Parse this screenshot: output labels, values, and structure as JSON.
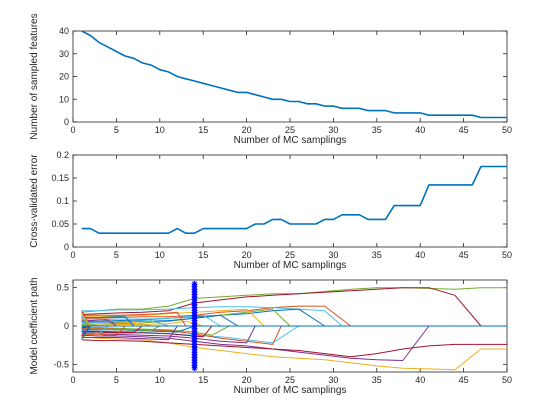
{
  "chart_data": [
    {
      "type": "line",
      "xlabel": "Number of MC samplings",
      "ylabel": "Number of sampled features",
      "xlim": [
        0,
        50
      ],
      "ylim": [
        0,
        40
      ],
      "xticks": [
        "0",
        "5",
        "10",
        "15",
        "20",
        "25",
        "30",
        "35",
        "40",
        "45",
        "50"
      ],
      "yticks": [
        "0",
        "10",
        "20",
        "30",
        "40"
      ],
      "grid": false,
      "series": [
        {
          "color": "#0072BD",
          "x": [
            1,
            2,
            3,
            4,
            5,
            6,
            7,
            8,
            9,
            10,
            11,
            12,
            13,
            14,
            15,
            16,
            17,
            18,
            19,
            20,
            21,
            22,
            23,
            24,
            25,
            26,
            27,
            28,
            29,
            30,
            31,
            32,
            33,
            34,
            35,
            36,
            37,
            38,
            39,
            40,
            41,
            42,
            43,
            44,
            45,
            46,
            47,
            48,
            49,
            50
          ],
          "y": [
            40,
            38,
            35,
            33,
            31,
            29,
            28,
            26,
            25,
            23,
            22,
            20,
            19,
            18,
            17,
            16,
            15,
            14,
            13,
            13,
            12,
            11,
            10,
            10,
            9,
            9,
            8,
            8,
            7,
            7,
            6,
            6,
            6,
            5,
            5,
            5,
            4,
            4,
            4,
            4,
            3,
            3,
            3,
            3,
            3,
            3,
            2,
            2,
            2,
            2
          ]
        }
      ]
    },
    {
      "type": "line",
      "xlabel": "Number of MC samplings",
      "ylabel": "Cross-validated error",
      "xlim": [
        0,
        50
      ],
      "ylim": [
        0,
        0.2
      ],
      "xticks": [
        "0",
        "5",
        "10",
        "15",
        "20",
        "25",
        "30",
        "35",
        "40",
        "45",
        "50"
      ],
      "yticks": [
        "0",
        "0.05",
        "0.1",
        "0.15",
        "0.2"
      ],
      "grid": false,
      "series": [
        {
          "color": "#0072BD",
          "x": [
            1,
            2,
            3,
            4,
            5,
            6,
            7,
            8,
            9,
            10,
            11,
            12,
            13,
            14,
            15,
            16,
            17,
            18,
            19,
            20,
            21,
            22,
            23,
            24,
            25,
            26,
            27,
            28,
            29,
            30,
            31,
            32,
            33,
            34,
            35,
            36,
            37,
            38,
            39,
            40,
            41,
            42,
            43,
            44,
            45,
            46,
            47,
            48,
            49,
            50
          ],
          "y": [
            0.04,
            0.04,
            0.03,
            0.03,
            0.03,
            0.03,
            0.03,
            0.03,
            0.03,
            0.03,
            0.03,
            0.04,
            0.03,
            0.03,
            0.04,
            0.04,
            0.04,
            0.04,
            0.04,
            0.04,
            0.05,
            0.05,
            0.06,
            0.06,
            0.05,
            0.05,
            0.05,
            0.05,
            0.06,
            0.06,
            0.07,
            0.07,
            0.07,
            0.06,
            0.06,
            0.06,
            0.09,
            0.09,
            0.09,
            0.09,
            0.135,
            0.135,
            0.135,
            0.135,
            0.135,
            0.135,
            0.175,
            0.175,
            0.175,
            0.175
          ]
        }
      ]
    },
    {
      "type": "line",
      "xlabel": "Number of MC samplings",
      "ylabel": "Model coefficient path",
      "xlim": [
        0,
        50
      ],
      "ylim": [
        -0.6,
        0.6
      ],
      "xticks": [
        "0",
        "5",
        "10",
        "15",
        "20",
        "25",
        "30",
        "35",
        "40",
        "45",
        "50"
      ],
      "yticks": [
        "-0.5",
        "0",
        "0.5"
      ],
      "grid": false,
      "annotations": [
        {
          "type": "vertical-marker-line",
          "x": 14,
          "color": "#0000ff",
          "marker": "asterisk"
        }
      ],
      "series": [
        {
          "color": "#77AC30",
          "x": [
            1,
            3,
            5,
            8,
            11,
            14,
            17,
            20,
            23,
            26,
            29,
            32,
            35,
            38,
            41,
            44,
            47,
            50
          ],
          "y": [
            0.18,
            0.2,
            0.22,
            0.22,
            0.26,
            0.36,
            0.38,
            0.4,
            0.42,
            0.42,
            0.45,
            0.48,
            0.5,
            0.5,
            0.49,
            0.48,
            0.5,
            0.5
          ]
        },
        {
          "color": "#A2142F",
          "x": [
            1,
            3,
            5,
            8,
            11,
            14,
            17,
            20,
            23,
            26,
            29,
            32,
            35,
            38,
            41,
            44,
            47
          ],
          "y": [
            0.15,
            0.16,
            0.17,
            0.18,
            0.2,
            0.3,
            0.34,
            0.38,
            0.4,
            0.42,
            0.44,
            0.46,
            0.48,
            0.5,
            0.5,
            0.4,
            0
          ]
        },
        {
          "color": "#EDB120",
          "x": [
            1,
            3,
            5,
            8,
            11,
            14,
            17,
            20,
            23,
            26,
            29,
            32,
            35,
            38,
            41,
            44,
            47,
            50
          ],
          "y": [
            -0.14,
            -0.16,
            -0.17,
            -0.18,
            -0.22,
            -0.28,
            -0.32,
            -0.36,
            -0.4,
            -0.42,
            -0.44,
            -0.48,
            -0.52,
            -0.55,
            -0.56,
            -0.57,
            -0.3,
            -0.3
          ]
        },
        {
          "color": "#7E2F8E",
          "x": [
            1,
            3,
            5,
            8,
            11,
            14,
            17,
            20,
            23,
            26,
            29,
            32,
            35,
            38,
            41
          ],
          "y": [
            -0.12,
            -0.13,
            -0.13,
            -0.14,
            -0.16,
            -0.2,
            -0.24,
            -0.26,
            -0.3,
            -0.34,
            -0.38,
            -0.42,
            -0.44,
            -0.45,
            0
          ]
        },
        {
          "color": "#A2142F",
          "x": [
            1,
            3,
            5,
            8,
            11,
            14,
            17,
            20,
            23,
            26,
            29,
            32,
            35,
            38,
            41,
            44,
            47,
            50
          ],
          "y": [
            -0.18,
            -0.19,
            -0.19,
            -0.2,
            -0.22,
            -0.24,
            -0.26,
            -0.28,
            -0.3,
            -0.32,
            -0.36,
            -0.4,
            -0.36,
            -0.3,
            -0.26,
            -0.24,
            -0.24,
            -0.24
          ]
        },
        {
          "color": "#D95319",
          "x": [
            1,
            3,
            5,
            8,
            11,
            14,
            17,
            20,
            23,
            26,
            29,
            32
          ],
          "y": [
            0.1,
            0.1,
            0.11,
            0.12,
            0.12,
            0.14,
            0.18,
            0.2,
            0.24,
            0.26,
            0.26,
            0
          ]
        },
        {
          "color": "#4DBEEE",
          "x": [
            1,
            3,
            5,
            8,
            11,
            14,
            17,
            20,
            23,
            26,
            29,
            31
          ],
          "y": [
            0.2,
            0.2,
            0.21,
            0.21,
            0.22,
            0.24,
            0.25,
            0.25,
            0.24,
            0.22,
            0.2,
            0
          ]
        },
        {
          "color": "#0072BD",
          "x": [
            1,
            3,
            5,
            8,
            11,
            14,
            17,
            20,
            23,
            26,
            29
          ],
          "y": [
            0.06,
            0.06,
            0.07,
            0.08,
            0.1,
            0.12,
            0.14,
            0.16,
            0.2,
            0.22,
            0
          ]
        },
        {
          "color": "#4DBEEE",
          "x": [
            1,
            3,
            5,
            8,
            11,
            14,
            17,
            20,
            23,
            26
          ],
          "y": [
            -0.06,
            -0.07,
            -0.07,
            -0.08,
            -0.1,
            -0.12,
            -0.14,
            -0.18,
            -0.22,
            0
          ]
        },
        {
          "color": "#77AC30",
          "x": [
            1,
            3,
            5,
            8,
            11,
            14,
            17,
            20,
            23,
            25
          ],
          "y": [
            0.02,
            0.03,
            0.03,
            0.04,
            0.06,
            0.1,
            0.14,
            0.18,
            0.22,
            0
          ]
        },
        {
          "color": "#D95319",
          "x": [
            1,
            3,
            5,
            8,
            11,
            14,
            17,
            20,
            23,
            24
          ],
          "y": [
            -0.03,
            -0.03,
            -0.04,
            -0.05,
            -0.06,
            -0.1,
            -0.16,
            -0.2,
            -0.24,
            0
          ]
        },
        {
          "color": "#EDB120",
          "x": [
            1,
            3,
            5,
            8,
            11,
            14,
            17,
            20,
            22
          ],
          "y": [
            0.12,
            0.12,
            0.13,
            0.14,
            0.16,
            0.18,
            0.2,
            0.22,
            0
          ]
        },
        {
          "color": "#7E2F8E",
          "x": [
            1,
            3,
            5,
            8,
            11,
            14,
            17,
            20,
            21
          ],
          "y": [
            -0.1,
            -0.1,
            -0.11,
            -0.12,
            -0.13,
            -0.16,
            -0.2,
            -0.22,
            0
          ]
        },
        {
          "color": "#0072BD",
          "x": [
            1,
            3,
            5,
            8,
            11,
            14,
            17,
            19
          ],
          "y": [
            0.04,
            0.05,
            0.05,
            0.06,
            0.07,
            0.1,
            0.14,
            0
          ]
        },
        {
          "color": "#77AC30",
          "x": [
            1,
            3,
            5,
            8,
            11,
            14,
            16,
            18
          ],
          "y": [
            -0.02,
            -0.02,
            -0.03,
            -0.04,
            -0.05,
            -0.08,
            -0.12,
            0
          ]
        },
        {
          "color": "#4DBEEE",
          "x": [
            1,
            3,
            5,
            8,
            11,
            13,
            15,
            17
          ],
          "y": [
            0.08,
            0.08,
            0.09,
            0.09,
            0.1,
            0.12,
            0.14,
            0
          ]
        },
        {
          "color": "#A2142F",
          "x": [
            1,
            3,
            5,
            8,
            11,
            13,
            15,
            16
          ],
          "y": [
            -0.08,
            -0.08,
            -0.09,
            -0.09,
            -0.1,
            -0.12,
            -0.14,
            0
          ]
        },
        {
          "color": "#EDB120",
          "x": [
            1,
            3,
            5,
            8,
            11,
            13,
            15
          ],
          "y": [
            0.01,
            0.01,
            0.02,
            0.02,
            0.03,
            0.06,
            0
          ]
        },
        {
          "color": "#0072BD",
          "x": [
            1,
            3,
            5,
            8,
            10,
            12,
            14
          ],
          "y": [
            -0.05,
            -0.05,
            -0.05,
            -0.06,
            -0.07,
            -0.08,
            0
          ]
        },
        {
          "color": "#D95319",
          "x": [
            1,
            3,
            5,
            8,
            10,
            12,
            13
          ],
          "y": [
            0.14,
            0.14,
            0.14,
            0.15,
            0.16,
            0.18,
            0
          ]
        },
        {
          "color": "#7E2F8E",
          "x": [
            1,
            3,
            5,
            7,
            9,
            11,
            12
          ],
          "y": [
            -0.15,
            -0.15,
            -0.15,
            -0.16,
            -0.17,
            -0.18,
            0
          ]
        },
        {
          "color": "#4DBEEE",
          "x": [
            1,
            3,
            5,
            7,
            9,
            11
          ],
          "y": [
            0.05,
            0.05,
            0.06,
            0.06,
            0.07,
            0
          ]
        },
        {
          "color": "#77AC30",
          "x": [
            1,
            3,
            5,
            7,
            9,
            10
          ],
          "y": [
            -0.04,
            -0.04,
            -0.05,
            -0.05,
            -0.06,
            0
          ]
        },
        {
          "color": "#EDB120",
          "x": [
            1,
            3,
            5,
            7,
            9
          ],
          "y": [
            0.03,
            0.03,
            0.04,
            0.05,
            0
          ]
        },
        {
          "color": "#A2142F",
          "x": [
            1,
            3,
            5,
            7,
            8
          ],
          "y": [
            -0.07,
            -0.07,
            -0.08,
            -0.08,
            0
          ]
        },
        {
          "color": "#0072BD",
          "x": [
            1,
            3,
            5,
            6,
            7
          ],
          "y": [
            0.11,
            0.11,
            0.12,
            0.12,
            0
          ]
        },
        {
          "color": "#D95319",
          "x": [
            1,
            3,
            4,
            5,
            6
          ],
          "y": [
            -0.11,
            -0.11,
            -0.12,
            -0.12,
            0
          ]
        },
        {
          "color": "#7E2F8E",
          "x": [
            1,
            2,
            3,
            4,
            5
          ],
          "y": [
            0.07,
            0.07,
            0.08,
            0.08,
            0
          ]
        },
        {
          "color": "#4DBEEE",
          "x": [
            1,
            2,
            3,
            4
          ],
          "y": [
            -0.09,
            -0.09,
            -0.1,
            0
          ]
        },
        {
          "color": "#77AC30",
          "x": [
            1,
            2,
            3
          ],
          "y": [
            0.02,
            0.02,
            0
          ]
        },
        {
          "color": "#0072BD",
          "x": [
            1,
            2
          ],
          "y": [
            -0.01,
            0
          ]
        },
        {
          "color": "#EDB120",
          "x": [
            1,
            2
          ],
          "y": [
            0.16,
            0
          ]
        },
        {
          "color": "#A2142F",
          "x": [
            1,
            2
          ],
          "y": [
            0.19,
            0
          ]
        },
        {
          "color": "#D95319",
          "x": [
            1,
            2
          ],
          "y": [
            -0.16,
            0
          ]
        },
        {
          "color": "#7E2F8E",
          "x": [
            1,
            2
          ],
          "y": [
            -0.13,
            0
          ]
        },
        {
          "color": "#4DBEEE",
          "x": [
            1,
            2
          ],
          "y": [
            0.13,
            0
          ]
        },
        {
          "color": "#77AC30",
          "x": [
            1,
            2
          ],
          "y": [
            0.09,
            0
          ]
        },
        {
          "color": "#0072BD",
          "x": [
            1,
            2
          ],
          "y": [
            -0.17,
            0
          ]
        },
        {
          "color": "#EDB120",
          "x": [
            1,
            2
          ],
          "y": [
            0.17,
            0
          ]
        },
        {
          "color": "#A2142F",
          "x": [
            1,
            2
          ],
          "y": [
            -0.03,
            0
          ]
        },
        {
          "color": "#0072BD",
          "x": [
            1,
            50
          ],
          "y": [
            0,
            0
          ]
        }
      ]
    }
  ]
}
